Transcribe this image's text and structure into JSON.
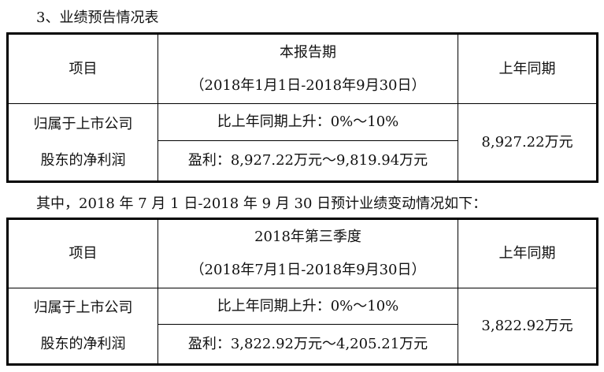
{
  "heading": "3、业绩预告情况表",
  "table1": {
    "col_item": "项目",
    "period_title": "本报告期",
    "period_range": "（2018年1月1日-2018年9月30日）",
    "col_prior": "上年同期",
    "row_label_1": "归属于上市公司",
    "row_label_2": "股东的净利润",
    "change": "比上年同期上升：0%～10%",
    "profit": "盈利：8,927.22万元～9,819.94万元",
    "prior_value": "8,927.22万元"
  },
  "between_text": "其中，2018 年 7 月 1 日-2018 年 9 月 30 日预计业绩变动情况如下：",
  "table2": {
    "col_item": "项目",
    "period_title": "2018年第三季度",
    "period_range": "（2018年7月1日-2018年9月30日）",
    "col_prior": "上年同期",
    "row_label_1": "归属于上市公司",
    "row_label_2": "股东的净利润",
    "change": "比上年同期上升：0%～10%",
    "profit": "盈利：3,822.92万元～4,205.21万元",
    "prior_value": "3,822.92万元"
  }
}
